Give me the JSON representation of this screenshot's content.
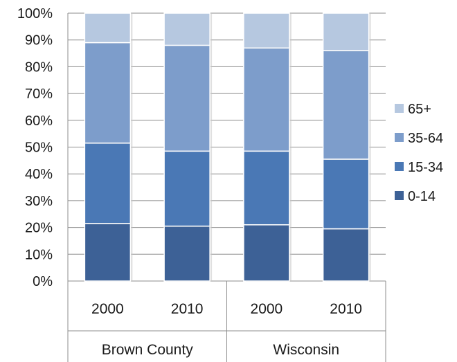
{
  "chart_data": {
    "type": "bar",
    "stacked": "percent",
    "title": "",
    "xlabel": "",
    "ylabel": "",
    "ylim": [
      0,
      100
    ],
    "y_ticks": [
      "0%",
      "10%",
      "20%",
      "30%",
      "40%",
      "50%",
      "60%",
      "70%",
      "80%",
      "90%",
      "100%"
    ],
    "grid": true,
    "legend_position": "right",
    "categories": [
      "2000",
      "2010",
      "2000",
      "2010"
    ],
    "groups": [
      {
        "label": "Brown County",
        "categories": [
          "2000",
          "2010"
        ]
      },
      {
        "label": "Wisconsin",
        "categories": [
          "2000",
          "2010"
        ]
      }
    ],
    "series": [
      {
        "name": "0-14",
        "color": "#3d6196",
        "values": [
          21.5,
          20.5,
          21.0,
          19.5
        ]
      },
      {
        "name": "15-34",
        "color": "#4a78b5",
        "values": [
          30.0,
          28.0,
          27.5,
          26.0
        ]
      },
      {
        "name": "35-64",
        "color": "#7d9dcb",
        "values": [
          37.5,
          39.5,
          38.5,
          40.5
        ]
      },
      {
        "name": "65+",
        "color": "#b6c8e0",
        "values": [
          11.0,
          12.0,
          13.0,
          14.0
        ]
      }
    ]
  }
}
